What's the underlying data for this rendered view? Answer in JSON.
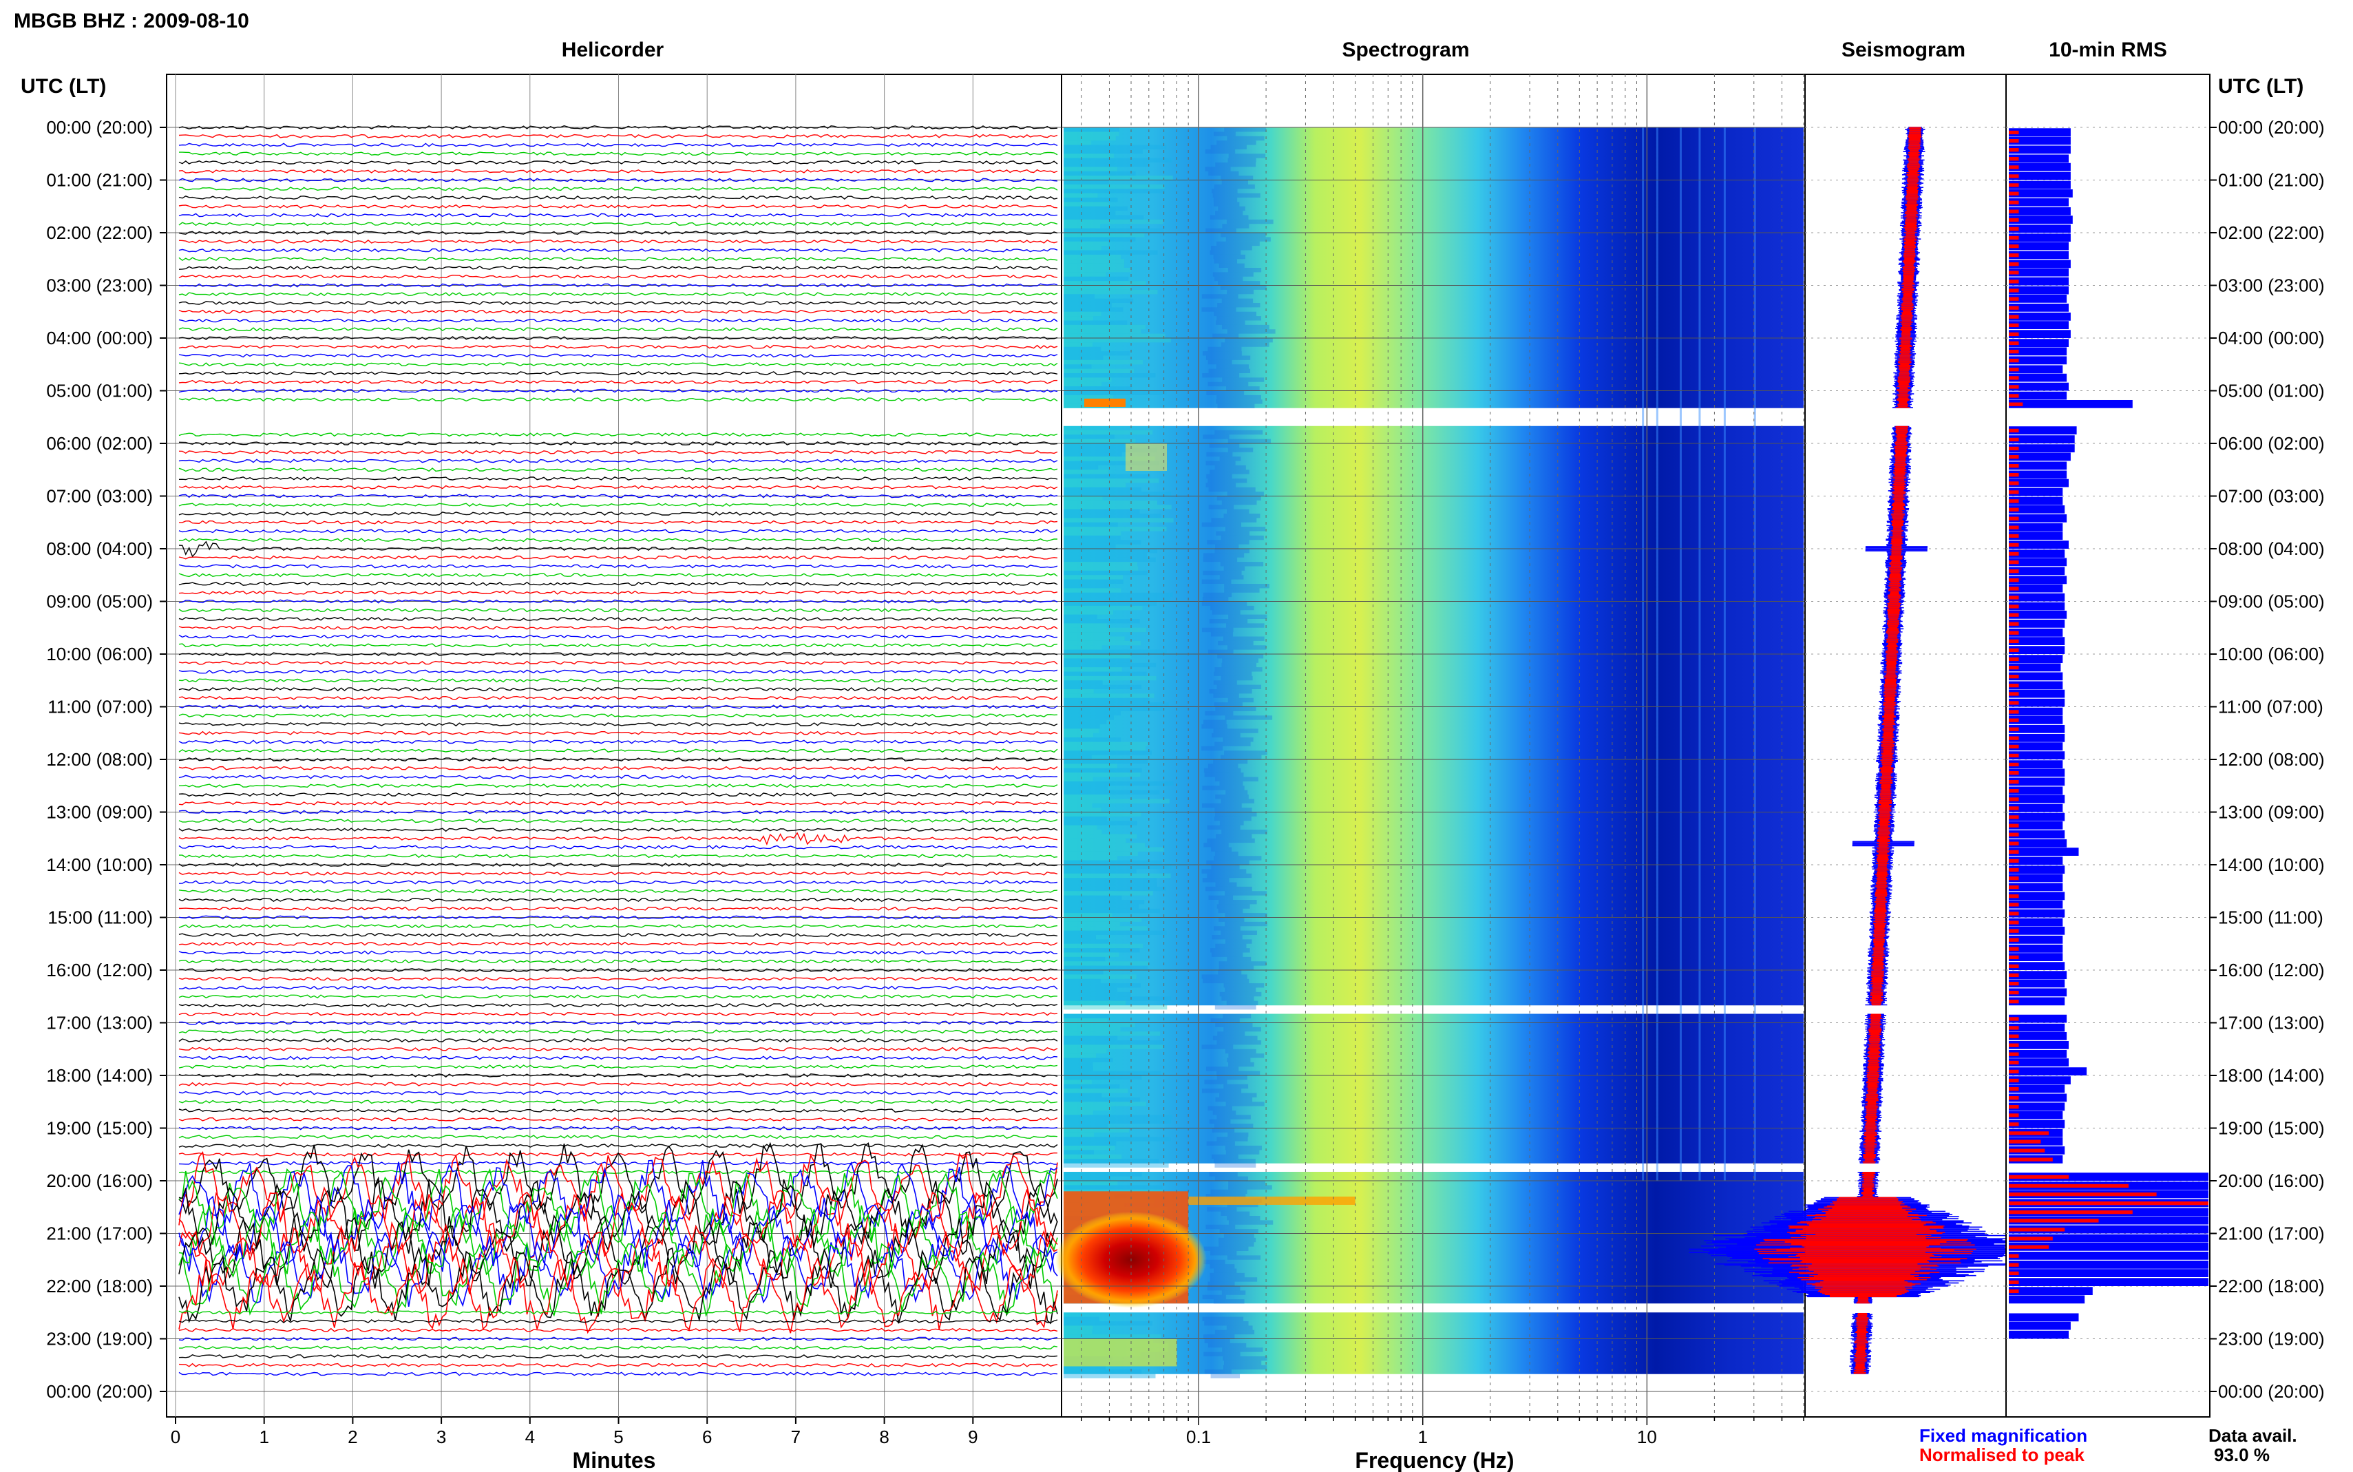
{
  "header": {
    "station_title": "MBGB BHZ : 2009-08-10",
    "time_axis_label": "UTC (LT)"
  },
  "panels": {
    "helicorder": "Helicorder",
    "spectrogram": "Spectrogram",
    "seismogram": "Seismogram",
    "rms": "10-min RMS"
  },
  "axes": {
    "helicorder_xlabel": "Minutes",
    "spectrogram_xlabel": "Frequency (Hz)"
  },
  "legend": {
    "fixed": "Fixed magnification",
    "normalised": "Normalised to peak",
    "fixed_color": "#0000ff",
    "normalised_color": "#ff0000"
  },
  "data_availability": {
    "label": "Data avail.",
    "value": "93.0 %"
  },
  "chart_data": {
    "type": "heatmap",
    "time_ticks": [
      "00:00 (20:00)",
      "01:00 (21:00)",
      "02:00 (22:00)",
      "03:00 (23:00)",
      "04:00 (00:00)",
      "05:00 (01:00)",
      "06:00 (02:00)",
      "07:00 (03:00)",
      "08:00 (04:00)",
      "09:00 (05:00)",
      "10:00 (06:00)",
      "11:00 (07:00)",
      "12:00 (08:00)",
      "13:00 (09:00)",
      "14:00 (10:00)",
      "15:00 (11:00)",
      "16:00 (12:00)",
      "17:00 (13:00)",
      "18:00 (14:00)",
      "19:00 (15:00)",
      "20:00 (16:00)",
      "21:00 (17:00)",
      "22:00 (18:00)",
      "23:00 (19:00)",
      "00:00 (20:00)"
    ],
    "helicorder": {
      "x_ticks": [
        "0",
        "1",
        "2",
        "3",
        "4",
        "5",
        "6",
        "7",
        "8",
        "9"
      ],
      "xlim": [
        0,
        10
      ],
      "trace_colors": [
        "#000000",
        "#ff0000",
        "#0000ff",
        "#00cc00"
      ],
      "traces_per_hour": 6
    },
    "spectrogram": {
      "x_scale": "log",
      "x_ticks": [
        "0.1",
        "1",
        "10"
      ],
      "xlim": [
        0.025,
        50
      ]
    },
    "data_gaps_utc_hours": [
      [
        5.33,
        5.67
      ],
      [
        16.67,
        16.83
      ],
      [
        19.67,
        19.83
      ],
      [
        22.33,
        22.5
      ],
      [
        23.67,
        24.0
      ]
    ],
    "rms_10min": {
      "hours": [
        0.17,
        0.33,
        0.5,
        0.67,
        0.83,
        1.0,
        1.17,
        1.33,
        1.5,
        1.67,
        1.83,
        2.0,
        2.17,
        2.33,
        2.5,
        2.67,
        2.83,
        3.0,
        3.17,
        3.33,
        3.5,
        3.67,
        3.83,
        4.0,
        4.17,
        4.33,
        4.5,
        4.67,
        4.83,
        5.0,
        5.17,
        5.33,
        5.83,
        6.0,
        6.17,
        6.33,
        6.5,
        6.67,
        6.83,
        7.0,
        7.17,
        7.33,
        7.5,
        7.67,
        7.83,
        8.0,
        8.17,
        8.33,
        8.5,
        8.67,
        8.83,
        9.0,
        9.17,
        9.33,
        9.5,
        9.67,
        9.83,
        10.0,
        10.17,
        10.33,
        10.5,
        10.67,
        10.83,
        11.0,
        11.17,
        11.33,
        11.5,
        11.67,
        11.83,
        12.0,
        12.17,
        12.33,
        12.5,
        12.67,
        12.83,
        13.0,
        13.17,
        13.33,
        13.5,
        13.67,
        13.83,
        14.0,
        14.17,
        14.33,
        14.5,
        14.67,
        14.83,
        15.0,
        15.17,
        15.33,
        15.5,
        15.67,
        15.83,
        16.0,
        16.17,
        16.33,
        16.5,
        16.67,
        17.0,
        17.17,
        17.33,
        17.5,
        17.67,
        17.83,
        18.0,
        18.17,
        18.33,
        18.5,
        18.67,
        18.83,
        19.0,
        19.17,
        19.33,
        19.5,
        19.67,
        20.0,
        20.17,
        20.33,
        20.5,
        20.67,
        20.83,
        21.0,
        21.17,
        21.33,
        21.5,
        21.67,
        21.83,
        22.0,
        22.17,
        22.33,
        22.67,
        22.83,
        23.0,
        23.17,
        23.33,
        23.5
      ],
      "blue_fixed": [
        0.31,
        0.31,
        0.31,
        0.3,
        0.31,
        0.31,
        0.31,
        0.32,
        0.3,
        0.31,
        0.32,
        0.31,
        0.31,
        0.3,
        0.3,
        0.31,
        0.3,
        0.3,
        0.3,
        0.29,
        0.3,
        0.31,
        0.3,
        0.31,
        0.3,
        0.29,
        0.29,
        0.27,
        0.29,
        0.3,
        0.29,
        0.62,
        0.34,
        0.33,
        0.33,
        0.31,
        0.29,
        0.29,
        0.3,
        0.27,
        0.27,
        0.28,
        0.29,
        0.27,
        0.27,
        0.3,
        0.28,
        0.29,
        0.28,
        0.29,
        0.27,
        0.28,
        0.28,
        0.29,
        0.28,
        0.27,
        0.28,
        0.28,
        0.27,
        0.26,
        0.27,
        0.27,
        0.28,
        0.28,
        0.27,
        0.27,
        0.28,
        0.28,
        0.27,
        0.28,
        0.27,
        0.28,
        0.28,
        0.27,
        0.28,
        0.27,
        0.28,
        0.27,
        0.28,
        0.29,
        0.35,
        0.27,
        0.28,
        0.27,
        0.27,
        0.28,
        0.27,
        0.28,
        0.27,
        0.28,
        0.27,
        0.27,
        0.27,
        0.28,
        0.29,
        0.28,
        0.29,
        0.28,
        0.29,
        0.28,
        0.29,
        0.3,
        0.29,
        0.3,
        0.39,
        0.31,
        0.28,
        0.29,
        0.28,
        0.27,
        0.28,
        0.27,
        0.27,
        0.28,
        0.27,
        1.0,
        1.0,
        1.0,
        1.0,
        1.0,
        1.0,
        1.0,
        1.0,
        1.0,
        1.0,
        1.0,
        1.0,
        1.0,
        0.42,
        0.38,
        0.35,
        0.31,
        0.3
      ],
      "red_normalised": [
        0.05,
        0.05,
        0.05,
        0.05,
        0.05,
        0.05,
        0.05,
        0.05,
        0.05,
        0.05,
        0.05,
        0.05,
        0.05,
        0.05,
        0.05,
        0.05,
        0.05,
        0.05,
        0.05,
        0.05,
        0.05,
        0.05,
        0.05,
        0.05,
        0.05,
        0.05,
        0.05,
        0.05,
        0.05,
        0.05,
        0.05,
        0.07,
        0.05,
        0.05,
        0.05,
        0.05,
        0.05,
        0.05,
        0.05,
        0.05,
        0.05,
        0.05,
        0.05,
        0.05,
        0.05,
        0.05,
        0.05,
        0.05,
        0.05,
        0.05,
        0.05,
        0.05,
        0.05,
        0.05,
        0.05,
        0.05,
        0.05,
        0.05,
        0.05,
        0.05,
        0.05,
        0.05,
        0.05,
        0.05,
        0.05,
        0.05,
        0.05,
        0.05,
        0.05,
        0.05,
        0.05,
        0.05,
        0.05,
        0.05,
        0.05,
        0.05,
        0.05,
        0.05,
        0.05,
        0.05,
        0.05,
        0.05,
        0.05,
        0.05,
        0.05,
        0.05,
        0.05,
        0.05,
        0.05,
        0.05,
        0.05,
        0.05,
        0.05,
        0.05,
        0.05,
        0.05,
        0.05,
        0.05,
        0.05,
        0.05,
        0.05,
        0.05,
        0.05,
        0.05,
        0.05,
        0.05,
        0.05,
        0.05,
        0.05,
        0.05,
        0.05,
        0.2,
        0.16,
        0.18,
        0.22,
        0.3,
        0.6,
        0.74,
        1.0,
        0.62,
        0.45,
        0.28,
        0.22,
        0.2,
        0.05,
        0.05,
        0.05,
        0.05,
        0.05
      ]
    }
  }
}
